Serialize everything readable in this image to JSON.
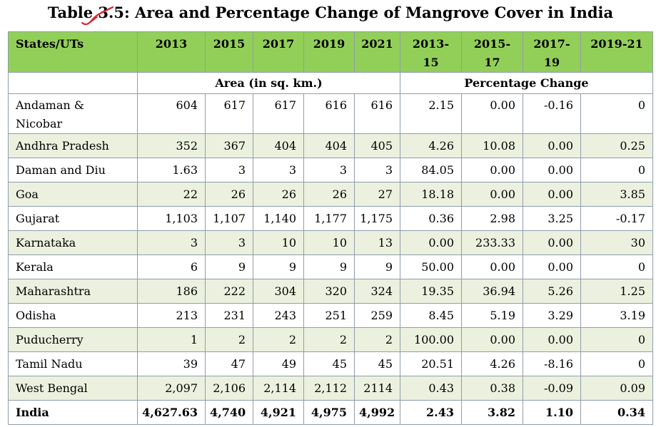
{
  "title": "Table 3.5: Area and Percentage Change of Mangrove Cover in India",
  "header": {
    "state_label": "States/UTs",
    "years": [
      "2013",
      "2015",
      "2017",
      "2019",
      "2021"
    ],
    "periods": [
      {
        "line1": "2013-",
        "line2": "15"
      },
      {
        "line1": "2015-",
        "line2": "17"
      },
      {
        "line1": "2017-",
        "line2": "19"
      },
      {
        "line1": "2019-21",
        "line2": ""
      }
    ],
    "area_group": "Area (in sq. km.)",
    "pct_group": "Percentage Change"
  },
  "rows": [
    {
      "name": "Andaman & Nicobar",
      "area": [
        "604",
        "617",
        "617",
        "616",
        "616"
      ],
      "pct": [
        "2.15",
        "0.00",
        "-0.16",
        "0"
      ]
    },
    {
      "name": "Andhra Pradesh",
      "area": [
        "352",
        "367",
        "404",
        "404",
        "405"
      ],
      "pct": [
        "4.26",
        "10.08",
        "0.00",
        "0.25"
      ]
    },
    {
      "name": "Daman and Diu",
      "area": [
        "1.63",
        "3",
        "3",
        "3",
        "3"
      ],
      "pct": [
        "84.05",
        "0.00",
        "0.00",
        "0"
      ]
    },
    {
      "name": "Goa",
      "area": [
        "22",
        "26",
        "26",
        "26",
        "27"
      ],
      "pct": [
        "18.18",
        "0.00",
        "0.00",
        "3.85"
      ]
    },
    {
      "name": "Gujarat",
      "area": [
        "1,103",
        "1,107",
        "1,140",
        "1,177",
        "1,175"
      ],
      "pct": [
        "0.36",
        "2.98",
        "3.25",
        "-0.17"
      ]
    },
    {
      "name": "Karnataka",
      "area": [
        "3",
        "3",
        "10",
        "10",
        "13"
      ],
      "pct": [
        "0.00",
        "233.33",
        "0.00",
        "30"
      ]
    },
    {
      "name": "Kerala",
      "area": [
        "6",
        "9",
        "9",
        "9",
        "9"
      ],
      "pct": [
        "50.00",
        "0.00",
        "0.00",
        "0"
      ]
    },
    {
      "name": "Maharashtra",
      "area": [
        "186",
        "222",
        "304",
        "320",
        "324"
      ],
      "pct": [
        "19.35",
        "36.94",
        "5.26",
        "1.25"
      ]
    },
    {
      "name": "Odisha",
      "area": [
        "213",
        "231",
        "243",
        "251",
        "259"
      ],
      "pct": [
        "8.45",
        "5.19",
        "3.29",
        "3.19"
      ]
    },
    {
      "name": "Puducherry",
      "area": [
        "1",
        "2",
        "2",
        "2",
        "2"
      ],
      "pct": [
        "100.00",
        "0.00",
        "0.00",
        "0"
      ]
    },
    {
      "name": "Tamil Nadu",
      "area": [
        "39",
        "47",
        "49",
        "45",
        "45"
      ],
      "pct": [
        "20.51",
        "4.26",
        "-8.16",
        "0"
      ]
    },
    {
      "name": "West Bengal",
      "area": [
        "2,097",
        "2,106",
        "2,114",
        "2,112",
        "2114"
      ],
      "pct": [
        "0.43",
        "0.38",
        "-0.09",
        "0.09"
      ]
    },
    {
      "name": "India",
      "area": [
        "4,627.63",
        "4,740",
        "4,921",
        "4,975",
        "4,992"
      ],
      "pct": [
        "2.43",
        "3.82",
        "1.10",
        "0.34"
      ]
    }
  ],
  "colors": {
    "header_bg": "#92cf58",
    "alt_row_bg": "#ebf1de",
    "border": "#8f9dab",
    "scribble": "#e0202c"
  },
  "annotation_icon": "red-pen-scribble-icon"
}
